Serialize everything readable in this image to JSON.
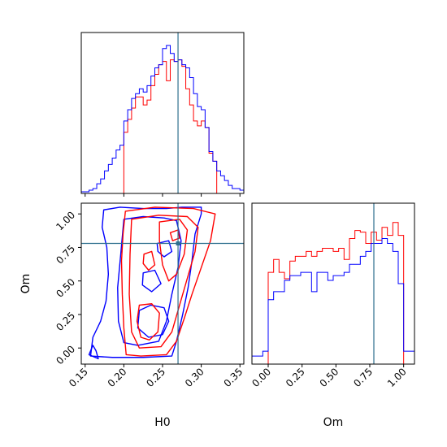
{
  "chart_data": [
    {
      "type": "step-histogram",
      "panel": "H0 marginal",
      "xlim": [
        0.145,
        0.355
      ],
      "truth_line": 0.27,
      "truth_color": "#2e6f8e",
      "series": [
        {
          "color": "#ff0000",
          "edges": [
            0.2,
            0.205,
            0.21,
            0.215,
            0.22,
            0.225,
            0.23,
            0.235,
            0.24,
            0.245,
            0.25,
            0.255,
            0.26,
            0.265,
            0.27,
            0.275,
            0.28,
            0.285,
            0.29,
            0.295,
            0.3,
            0.305,
            0.31,
            0.315,
            0.32
          ],
          "values": [
            0.38,
            0.46,
            0.53,
            0.6,
            0.6,
            0.55,
            0.58,
            0.67,
            0.74,
            0.8,
            0.82,
            0.7,
            0.83,
            0.82,
            0.83,
            0.79,
            0.65,
            0.55,
            0.45,
            0.42,
            0.45,
            0.41,
            0.25,
            0.2
          ]
        },
        {
          "color": "#0000ff",
          "edges": [
            0.145,
            0.15,
            0.155,
            0.16,
            0.165,
            0.17,
            0.175,
            0.18,
            0.185,
            0.19,
            0.195,
            0.2,
            0.205,
            0.21,
            0.215,
            0.22,
            0.225,
            0.23,
            0.235,
            0.24,
            0.245,
            0.25,
            0.255,
            0.26,
            0.265,
            0.27,
            0.275,
            0.28,
            0.285,
            0.29,
            0.295,
            0.3,
            0.305,
            0.31,
            0.315,
            0.32,
            0.325,
            0.33,
            0.335,
            0.34,
            0.345,
            0.35,
            0.355
          ],
          "values": [
            0.01,
            0.01,
            0.02,
            0.03,
            0.06,
            0.09,
            0.14,
            0.18,
            0.22,
            0.27,
            0.3,
            0.45,
            0.52,
            0.59,
            0.62,
            0.65,
            0.63,
            0.67,
            0.73,
            0.78,
            0.8,
            0.9,
            0.92,
            0.87,
            0.82,
            0.83,
            0.8,
            0.78,
            0.72,
            0.62,
            0.54,
            0.52,
            0.41,
            0.26,
            0.2,
            0.14,
            0.11,
            0.08,
            0.05,
            0.03,
            0.03,
            0.02
          ]
        }
      ]
    },
    {
      "type": "contour",
      "panel": "H0 vs Om",
      "xlabel": "H0",
      "ylabel": "Om",
      "xlim": [
        0.145,
        0.355
      ],
      "ylim": [
        -0.12,
        1.08
      ],
      "xticks": [
        "0.15",
        "0.20",
        "0.25",
        "0.30",
        "0.35"
      ],
      "yticks": [
        "0.00",
        "0.25",
        "0.50",
        "0.75",
        "1.00"
      ],
      "xtick_values": [
        0.15,
        0.2,
        0.25,
        0.3,
        0.35
      ],
      "ytick_values": [
        0.0,
        0.25,
        0.5,
        0.75,
        1.0
      ],
      "truth": [
        0.27,
        0.78
      ],
      "contours": [
        {
          "color": "#0000ff",
          "points": [
            [
              0.174,
              1.03
            ],
            [
              0.195,
              1.05
            ],
            [
              0.225,
              1.04
            ],
            [
              0.255,
              1.04
            ],
            [
              0.275,
              1.05
            ],
            [
              0.3,
              1.05
            ],
            [
              0.3,
              1.0
            ],
            [
              0.292,
              0.85
            ],
            [
              0.288,
              0.65
            ],
            [
              0.283,
              0.45
            ],
            [
              0.276,
              0.25
            ],
            [
              0.268,
              0.05
            ],
            [
              0.262,
              -0.06
            ],
            [
              0.225,
              -0.07
            ],
            [
              0.185,
              -0.07
            ],
            [
              0.157,
              -0.06
            ],
            [
              0.16,
              0.08
            ],
            [
              0.17,
              0.2
            ],
            [
              0.177,
              0.35
            ],
            [
              0.18,
              0.55
            ],
            [
              0.178,
              0.75
            ],
            [
              0.172,
              0.9
            ],
            [
              0.174,
              1.03
            ]
          ]
        },
        {
          "color": "#0000ff",
          "points": [
            [
              0.16,
              0.02
            ],
            [
              0.155,
              -0.05
            ],
            [
              0.167,
              -0.08
            ],
            [
              0.164,
              -0.02
            ],
            [
              0.16,
              0.02
            ]
          ]
        },
        {
          "color": "#0000ff",
          "points": [
            [
              0.2,
              0.96
            ],
            [
              0.225,
              0.98
            ],
            [
              0.252,
              0.97
            ],
            [
              0.268,
              0.95
            ],
            [
              0.274,
              0.8
            ],
            [
              0.27,
              0.6
            ],
            [
              0.262,
              0.4
            ],
            [
              0.255,
              0.2
            ],
            [
              0.245,
              0.05
            ],
            [
              0.218,
              0.02
            ],
            [
              0.2,
              0.04
            ],
            [
              0.193,
              0.2
            ],
            [
              0.192,
              0.45
            ],
            [
              0.196,
              0.7
            ],
            [
              0.2,
              0.96
            ]
          ]
        },
        {
          "color": "#0000ff",
          "points": [
            [
              0.22,
              0.28
            ],
            [
              0.235,
              0.32
            ],
            [
              0.252,
              0.3
            ],
            [
              0.258,
              0.2
            ],
            [
              0.25,
              0.1
            ],
            [
              0.232,
              0.08
            ],
            [
              0.218,
              0.15
            ],
            [
              0.22,
              0.28
            ]
          ]
        },
        {
          "color": "#0000ff",
          "points": [
            [
              0.225,
              0.56
            ],
            [
              0.24,
              0.58
            ],
            [
              0.248,
              0.48
            ],
            [
              0.236,
              0.42
            ],
            [
              0.224,
              0.47
            ],
            [
              0.225,
              0.56
            ]
          ]
        },
        {
          "color": "#0000ff",
          "points": [
            [
              0.243,
              0.78
            ],
            [
              0.258,
              0.8
            ],
            [
              0.262,
              0.72
            ],
            [
              0.252,
              0.68
            ],
            [
              0.244,
              0.72
            ],
            [
              0.243,
              0.78
            ]
          ]
        },
        {
          "color": "#ff0000",
          "points": [
            [
              0.202,
              1.02
            ],
            [
              0.24,
              1.05
            ],
            [
              0.29,
              1.04
            ],
            [
              0.318,
              1.0
            ],
            [
              0.312,
              0.8
            ],
            [
              0.3,
              0.6
            ],
            [
              0.288,
              0.4
            ],
            [
              0.278,
              0.22
            ],
            [
              0.268,
              0.05
            ],
            [
              0.255,
              -0.05
            ],
            [
              0.222,
              -0.06
            ],
            [
              0.203,
              -0.05
            ],
            [
              0.2,
              0.15
            ],
            [
              0.198,
              0.4
            ],
            [
              0.197,
              0.65
            ],
            [
              0.199,
              0.85
            ],
            [
              0.202,
              1.02
            ]
          ]
        },
        {
          "color": "#ff0000",
          "points": [
            [
              0.21,
              0.96
            ],
            [
              0.245,
              0.99
            ],
            [
              0.282,
              0.98
            ],
            [
              0.296,
              0.9
            ],
            [
              0.292,
              0.72
            ],
            [
              0.282,
              0.52
            ],
            [
              0.272,
              0.32
            ],
            [
              0.262,
              0.12
            ],
            [
              0.248,
              0.01
            ],
            [
              0.22,
              0.0
            ],
            [
              0.21,
              0.12
            ],
            [
              0.207,
              0.4
            ],
            [
              0.208,
              0.7
            ],
            [
              0.21,
              0.96
            ]
          ]
        },
        {
          "color": "#ff0000",
          "points": [
            [
              0.246,
              0.94
            ],
            [
              0.272,
              0.96
            ],
            [
              0.282,
              0.88
            ],
            [
              0.278,
              0.7
            ],
            [
              0.268,
              0.55
            ],
            [
              0.258,
              0.5
            ],
            [
              0.25,
              0.62
            ],
            [
              0.246,
              0.8
            ],
            [
              0.246,
              0.94
            ]
          ]
        },
        {
          "color": "#ff0000",
          "points": [
            [
              0.22,
              0.32
            ],
            [
              0.236,
              0.33
            ],
            [
              0.246,
              0.26
            ],
            [
              0.244,
              0.12
            ],
            [
              0.233,
              0.06
            ],
            [
              0.222,
              0.08
            ],
            [
              0.217,
              0.2
            ],
            [
              0.22,
              0.32
            ]
          ]
        },
        {
          "color": "#ff0000",
          "points": [
            [
              0.226,
              0.7
            ],
            [
              0.236,
              0.72
            ],
            [
              0.24,
              0.62
            ],
            [
              0.232,
              0.58
            ],
            [
              0.225,
              0.63
            ],
            [
              0.226,
              0.7
            ]
          ]
        },
        {
          "color": "#ff0000",
          "points": [
            [
              0.26,
              0.86
            ],
            [
              0.27,
              0.88
            ],
            [
              0.272,
              0.82
            ],
            [
              0.263,
              0.8
            ],
            [
              0.26,
              0.86
            ]
          ]
        }
      ]
    },
    {
      "type": "step-histogram",
      "panel": "Om marginal",
      "xlabel": "Om",
      "xlim": [
        -0.12,
        1.08
      ],
      "xticks": [
        "0.00",
        "0.25",
        "0.50",
        "0.75",
        "1.00"
      ],
      "xtick_values": [
        0.0,
        0.25,
        0.5,
        0.75,
        1.0
      ],
      "truth_line": 0.78,
      "truth_color": "#2e6f8e",
      "series": [
        {
          "color": "#ff0000",
          "edges": [
            0.0,
            0.04,
            0.08,
            0.12,
            0.16,
            0.2,
            0.24,
            0.28,
            0.32,
            0.36,
            0.4,
            0.44,
            0.48,
            0.52,
            0.56,
            0.6,
            0.64,
            0.68,
            0.72,
            0.76,
            0.8,
            0.84,
            0.88,
            0.92,
            0.96,
            1.0
          ],
          "values": [
            0.57,
            0.65,
            0.57,
            0.53,
            0.64,
            0.67,
            0.67,
            0.7,
            0.67,
            0.7,
            0.72,
            0.72,
            0.7,
            0.72,
            0.65,
            0.78,
            0.83,
            0.82,
            0.75,
            0.82,
            0.77,
            0.85,
            0.8,
            0.88,
            0.8
          ]
        },
        {
          "color": "#0000ff",
          "edges": [
            -0.12,
            -0.08,
            -0.04,
            0.0,
            0.04,
            0.08,
            0.12,
            0.16,
            0.2,
            0.24,
            0.28,
            0.32,
            0.36,
            0.4,
            0.44,
            0.48,
            0.52,
            0.56,
            0.6,
            0.64,
            0.68,
            0.72,
            0.76,
            0.8,
            0.84,
            0.88,
            0.92,
            0.96,
            1.0,
            1.04,
            1.08
          ],
          "values": [
            0.05,
            0.05,
            0.08,
            0.4,
            0.45,
            0.45,
            0.52,
            0.55,
            0.55,
            0.57,
            0.57,
            0.45,
            0.57,
            0.57,
            0.52,
            0.55,
            0.55,
            0.57,
            0.62,
            0.62,
            0.67,
            0.7,
            0.75,
            0.75,
            0.78,
            0.75,
            0.7,
            0.5,
            0.08,
            0.08
          ]
        }
      ]
    }
  ]
}
